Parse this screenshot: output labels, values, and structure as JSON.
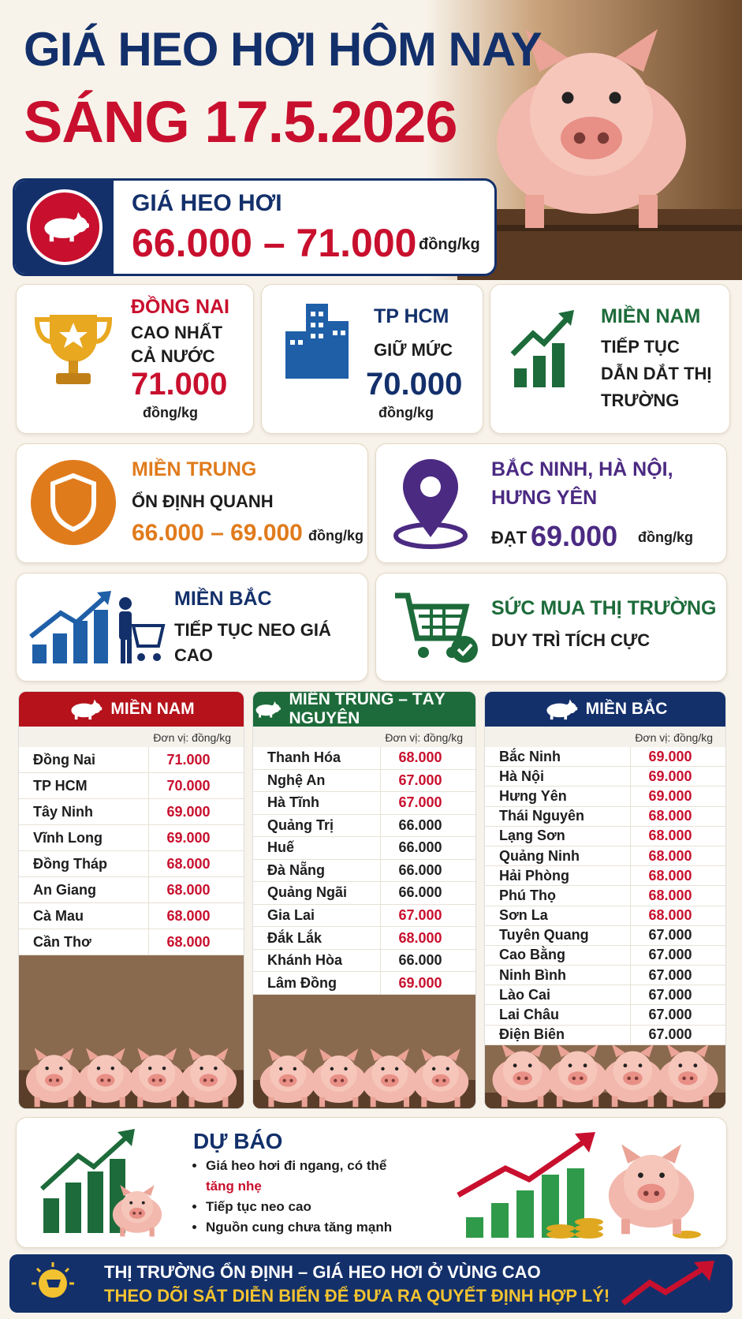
{
  "header": {
    "title_line1": "GIÁ HEO HƠI HÔM NAY",
    "title_line2": "SÁNG 17.5.2026"
  },
  "price_banner": {
    "label": "GIÁ HEO HƠI",
    "range": "66.000 – 71.000",
    "unit": "đồng/kg"
  },
  "highlights": [
    {
      "title": "ĐỒNG NAI",
      "text": "CAO NHẤT CẢ NƯỚC",
      "value": "71.000",
      "unit": "đồng/kg"
    },
    {
      "title": "TP HCM",
      "text": "GIỮ MỨC",
      "value": "70.000",
      "unit": "đồng/kg"
    },
    {
      "title": "MIỀN NAM",
      "text": "TIẾP TỤC DẪN DẮT THỊ TRƯỜNG"
    },
    {
      "title": "MIỀN TRUNG",
      "text": "ỔN ĐỊNH QUANH",
      "value": "66.000 – 69.000",
      "unit": "đồng/kg"
    },
    {
      "title": "BẮC NINH, HÀ NỘI, HƯNG YÊN",
      "text": "ĐẠT",
      "value": "69.000",
      "unit": "đồng/kg"
    },
    {
      "title": "MIỀN BẮC",
      "text": "TIẾP TỤC NEO GIÁ CAO"
    },
    {
      "title": "SỨC MUA THỊ TRƯỜNG",
      "text": "DUY TRÌ TÍCH CỰC"
    }
  ],
  "tables": [
    {
      "region": "MIỀN NAM",
      "color": "#b5121b",
      "unit_note": "Đơn vị: đồng/kg",
      "rows": [
        {
          "province": "Đồng Nai",
          "price": "71.000",
          "price_color": "#c8102e"
        },
        {
          "province": "TP HCM",
          "price": "70.000",
          "price_color": "#c8102e"
        },
        {
          "province": "Tây Ninh",
          "price": "69.000",
          "price_color": "#c8102e"
        },
        {
          "province": "Vĩnh Long",
          "price": "69.000",
          "price_color": "#c8102e"
        },
        {
          "province": "Đồng Tháp",
          "price": "68.000",
          "price_color": "#c8102e"
        },
        {
          "province": "An Giang",
          "price": "68.000",
          "price_color": "#c8102e"
        },
        {
          "province": "Cà Mau",
          "price": "68.000",
          "price_color": "#c8102e"
        },
        {
          "province": "Cần Thơ",
          "price": "68.000",
          "price_color": "#c8102e"
        }
      ]
    },
    {
      "region": "MIỀN TRUNG – TÂY NGUYÊN",
      "color": "#1d6b3a",
      "unit_note": "Đơn vị: đồng/kg",
      "rows": [
        {
          "province": "Thanh Hóa",
          "price": "68.000",
          "price_color": "#c8102e"
        },
        {
          "province": "Nghệ An",
          "price": "67.000",
          "price_color": "#c8102e"
        },
        {
          "province": "Hà Tĩnh",
          "price": "67.000",
          "price_color": "#c8102e"
        },
        {
          "province": "Quảng Trị",
          "price": "66.000",
          "price_color": "#222222"
        },
        {
          "province": "Huế",
          "price": "66.000",
          "price_color": "#222222"
        },
        {
          "province": "Đà Nẵng",
          "price": "66.000",
          "price_color": "#222222"
        },
        {
          "province": "Quảng Ngãi",
          "price": "66.000",
          "price_color": "#222222"
        },
        {
          "province": "Gia Lai",
          "price": "67.000",
          "price_color": "#c8102e"
        },
        {
          "province": "Đắk Lắk",
          "price": "68.000",
          "price_color": "#c8102e"
        },
        {
          "province": "Khánh Hòa",
          "price": "66.000",
          "price_color": "#222222"
        },
        {
          "province": "Lâm Đồng",
          "price": "69.000",
          "price_color": "#c8102e"
        }
      ]
    },
    {
      "region": "MIỀN BẮC",
      "color": "#13306b",
      "unit_note": "Đơn vị: đồng/kg",
      "rows": [
        {
          "province": "Bắc Ninh",
          "price": "69.000",
          "price_color": "#c8102e"
        },
        {
          "province": "Hà Nội",
          "price": "69.000",
          "price_color": "#c8102e"
        },
        {
          "province": "Hưng Yên",
          "price": "69.000",
          "price_color": "#c8102e"
        },
        {
          "province": "Thái Nguyên",
          "price": "68.000",
          "price_color": "#c8102e"
        },
        {
          "province": "Lạng Sơn",
          "price": "68.000",
          "price_color": "#c8102e"
        },
        {
          "province": "Quảng Ninh",
          "price": "68.000",
          "price_color": "#c8102e"
        },
        {
          "province": "Hải Phòng",
          "price": "68.000",
          "price_color": "#c8102e"
        },
        {
          "province": "Phú Thọ",
          "price": "68.000",
          "price_color": "#c8102e"
        },
        {
          "province": "Sơn La",
          "price": "68.000",
          "price_color": "#c8102e"
        },
        {
          "province": "Tuyên Quang",
          "price": "67.000",
          "price_color": "#222222"
        },
        {
          "province": "Cao Bằng",
          "price": "67.000",
          "price_color": "#222222"
        },
        {
          "province": "Ninh Bình",
          "price": "67.000",
          "price_color": "#222222"
        },
        {
          "province": "Lào Cai",
          "price": "67.000",
          "price_color": "#222222"
        },
        {
          "province": "Lai Châu",
          "price": "67.000",
          "price_color": "#222222"
        },
        {
          "province": "Điện Biên",
          "price": "67.000",
          "price_color": "#222222"
        }
      ]
    }
  ],
  "forecast": {
    "title": "DỰ BÁO",
    "bullets": [
      {
        "text": "Giá heo hơi đi ngang, có thể",
        "emphasis": "tăng nhẹ"
      },
      {
        "text": "Tiếp tục neo cao"
      },
      {
        "text": "Nguồn cung chưa tăng mạnh"
      }
    ]
  },
  "footer": {
    "line1": "THỊ TRƯỜNG ỔN ĐỊNH – GIÁ HEO HƠI Ở VÙNG CAO",
    "line2": "THEO DÕI SÁT DIỄN BIẾN ĐỂ ĐƯA RA QUYẾT ĐỊNH HỢP LÝ!"
  }
}
